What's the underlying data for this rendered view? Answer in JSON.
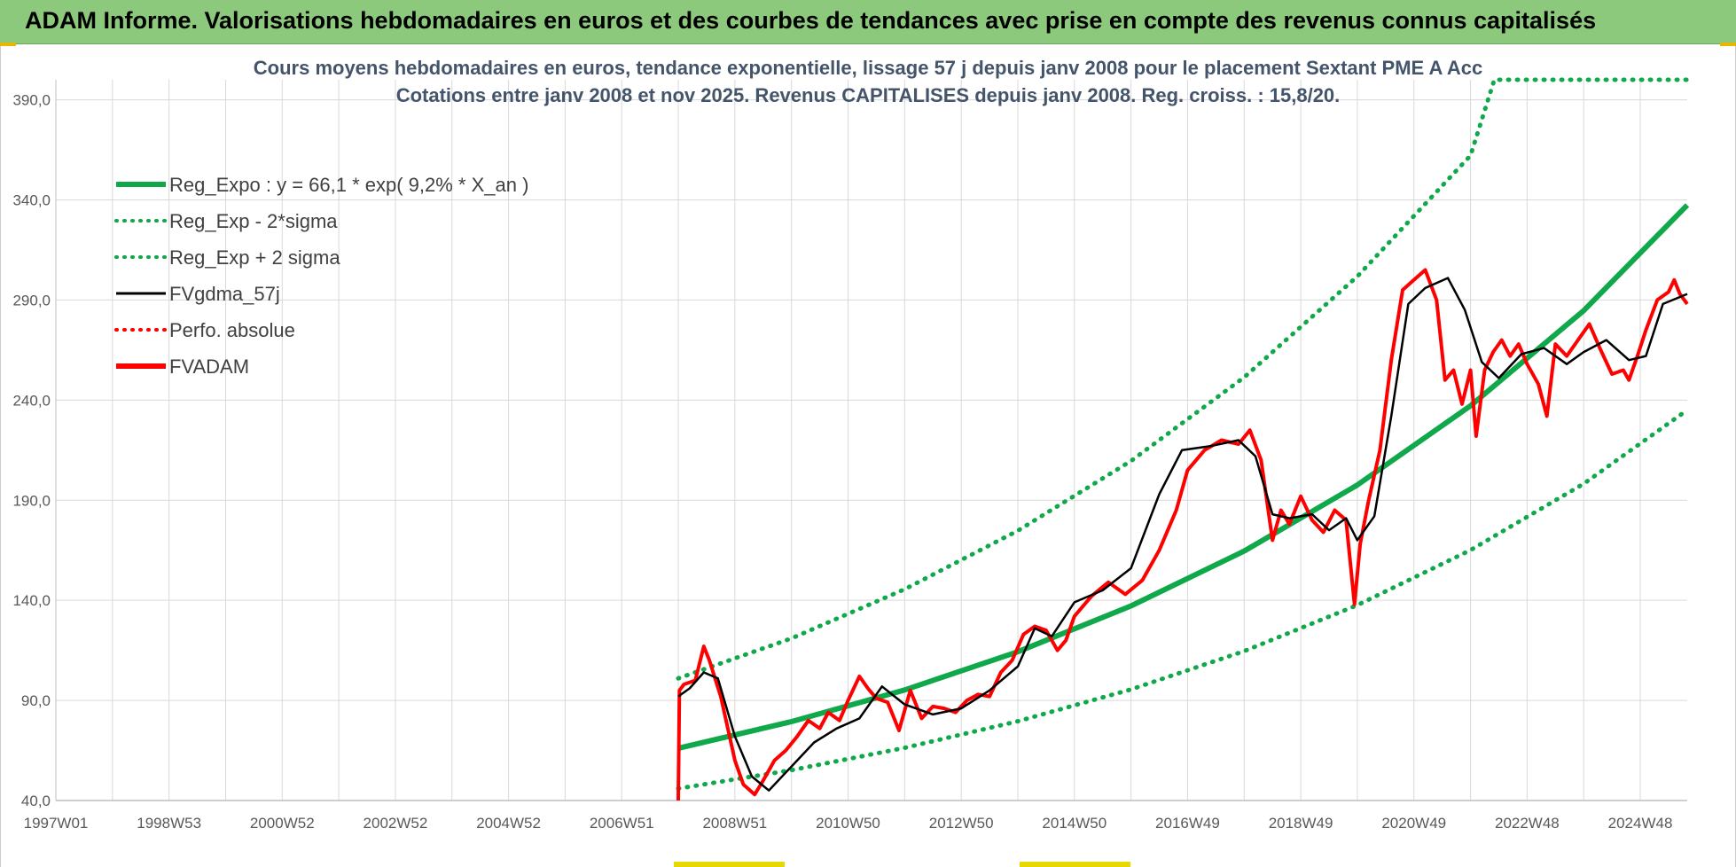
{
  "header": {
    "title": "ADAM Informe. Valorisations hebdomadaires en euros et des courbes de tendances avec prise en compte des revenus connus capitalisés"
  },
  "colors": {
    "banner": "#8cc97c",
    "trend": "#0fa84a",
    "smooth": "#000000",
    "price": "#ff0000",
    "grid": "#d9d9d9"
  },
  "chart_data": {
    "type": "line",
    "title": "Cours moyens hebdomadaires en euros, tendance exponentielle, lissage 57 j depuis janv 2008 pour le placement Sextant PME A Acc",
    "subtitle": "Cotations entre janv 2008 et nov 2025. Revenus CAPITALISES depuis janv 2008. Reg. croiss. : 15,8/20.",
    "ylim": [
      40,
      400
    ],
    "y_ticks": [
      "40,0",
      "90,0",
      "140,0",
      "190,0",
      "240,0",
      "290,0",
      "340,0",
      "390,0"
    ],
    "y_tick_values": [
      40,
      90,
      140,
      190,
      240,
      290,
      340,
      390
    ],
    "x_ticks": [
      "1997W01",
      "1998W53",
      "2000W52",
      "2002W52",
      "2004W52",
      "2006W51",
      "2008W51",
      "2010W50",
      "2012W50",
      "2014W50",
      "2016W49",
      "2018W49",
      "2020W49",
      "2022W48",
      "2024W48"
    ],
    "x_tick_years": [
      1997.0,
      1999.0,
      2001.0,
      2003.0,
      2005.0,
      2007.0,
      2009.0,
      2011.0,
      2013.0,
      2015.0,
      2017.0,
      2019.0,
      2021.0,
      2023.0,
      2025.0
    ],
    "xlim": [
      1997.0,
      2025.83
    ],
    "grid": true,
    "legend_position": "top-left",
    "legend": [
      {
        "label": "Reg_Expo : y = 66,1 * exp( 9,2% *  X_an )",
        "color": "#0fa84a",
        "style": "solid-thick"
      },
      {
        "label": "Reg_Exp - 2*sigma",
        "color": "#0fa84a",
        "style": "dotted"
      },
      {
        "label": "Reg_Exp + 2 sigma",
        "color": "#0fa84a",
        "style": "dotted"
      },
      {
        "label": "FVgdma_57j",
        "color": "#000000",
        "style": "solid"
      },
      {
        "label": "Perfo. absolue",
        "color": "#ff0000",
        "style": "dotted"
      },
      {
        "label": "FVADAM",
        "color": "#ff0000",
        "style": "solid-thick"
      }
    ],
    "series": [
      {
        "name": "Reg_Expo : y = 66,1 * exp( 9,2% *  X_an )",
        "x": [
          2008.0,
          2010.0,
          2012.0,
          2014.0,
          2016.0,
          2018.0,
          2020.0,
          2022.0,
          2024.0,
          2025.83
        ],
        "values": [
          66.1,
          79.4,
          95.2,
          114.3,
          137.2,
          164.6,
          197.6,
          237.2,
          284.7,
          337.4
        ]
      },
      {
        "name": "Reg_Exp - 2*sigma",
        "x": [
          2008.0,
          2010.0,
          2012.0,
          2014.0,
          2016.0,
          2018.0,
          2020.0,
          2022.0,
          2024.0,
          2025.83
        ],
        "values": [
          46.0,
          55.2,
          66.3,
          79.6,
          95.5,
          114.6,
          137.6,
          165.1,
          198.2,
          235.0
        ]
      },
      {
        "name": "Reg_Exp + 2 sigma",
        "x": [
          2008.0,
          2010.0,
          2012.0,
          2014.0,
          2016.0,
          2018.0,
          2020.0,
          2022.0,
          2022.42,
          2025.83
        ],
        "values": [
          101.0,
          121.0,
          145.5,
          174.8,
          209.6,
          251.4,
          301.8,
          362.2,
          400.0,
          400.0
        ]
      },
      {
        "name": "FVgdma_57j",
        "x": [
          2008.0,
          2008.2,
          2008.45,
          2008.7,
          2009.0,
          2009.3,
          2009.6,
          2010.0,
          2010.4,
          2010.8,
          2011.2,
          2011.6,
          2012.0,
          2012.5,
          2013.0,
          2013.5,
          2014.0,
          2014.3,
          2014.6,
          2015.0,
          2015.5,
          2016.0,
          2016.5,
          2016.9,
          2017.4,
          2017.9,
          2018.2,
          2018.5,
          2018.8,
          2019.2,
          2019.5,
          2019.8,
          2020.0,
          2020.3,
          2020.6,
          2020.9,
          2021.2,
          2021.6,
          2021.9,
          2022.2,
          2022.5,
          2022.9,
          2023.3,
          2023.7,
          2024.0,
          2024.4,
          2024.8,
          2025.1,
          2025.4,
          2025.83
        ],
        "values": [
          92.0,
          96.0,
          104.0,
          101.0,
          72.0,
          52.0,
          45.0,
          57.0,
          69.0,
          76.0,
          81.0,
          97.0,
          88.0,
          83.0,
          86.0,
          95.0,
          107.0,
          126.0,
          122.0,
          139.0,
          145.0,
          156.0,
          193.0,
          215.0,
          217.0,
          220.0,
          212.0,
          183.0,
          181.0,
          183.0,
          175.0,
          181.0,
          170.0,
          182.0,
          232.0,
          288.0,
          296.0,
          301.0,
          285.0,
          259.0,
          251.0,
          263.0,
          266.0,
          258.0,
          264.0,
          270.0,
          260.0,
          262.0,
          288.0,
          293.0
        ]
      },
      {
        "name": "FVADAM",
        "x": [
          2008.0,
          2008.02,
          2008.1,
          2008.3,
          2008.45,
          2008.55,
          2008.75,
          2009.0,
          2009.15,
          2009.35,
          2009.5,
          2009.7,
          2009.9,
          2010.1,
          2010.3,
          2010.5,
          2010.65,
          2010.85,
          2011.0,
          2011.2,
          2011.35,
          2011.5,
          2011.7,
          2011.9,
          2012.1,
          2012.3,
          2012.5,
          2012.7,
          2012.9,
          2013.1,
          2013.3,
          2013.5,
          2013.7,
          2013.9,
          2014.1,
          2014.3,
          2014.5,
          2014.7,
          2014.85,
          2015.0,
          2015.3,
          2015.6,
          2015.9,
          2016.2,
          2016.5,
          2016.8,
          2017.0,
          2017.3,
          2017.6,
          2017.9,
          2018.1,
          2018.3,
          2018.5,
          2018.65,
          2018.8,
          2019.0,
          2019.2,
          2019.4,
          2019.6,
          2019.8,
          2019.95,
          2020.05,
          2020.2,
          2020.4,
          2020.6,
          2020.8,
          2021.0,
          2021.2,
          2021.4,
          2021.55,
          2021.7,
          2021.85,
          2022.0,
          2022.1,
          2022.25,
          2022.4,
          2022.55,
          2022.7,
          2022.85,
          2023.0,
          2023.2,
          2023.35,
          2023.5,
          2023.7,
          2023.9,
          2024.1,
          2024.3,
          2024.5,
          2024.7,
          2024.8,
          2024.95,
          2025.1,
          2025.3,
          2025.5,
          2025.6,
          2025.7,
          2025.83
        ],
        "values": [
          40.0,
          95.0,
          98.0,
          100.0,
          117.0,
          110.0,
          92.0,
          60.0,
          48.0,
          43.0,
          50.0,
          60.0,
          65.0,
          72.0,
          80.0,
          76.0,
          84.0,
          80.0,
          90.0,
          102.0,
          96.0,
          91.0,
          89.0,
          75.0,
          95.0,
          81.0,
          87.0,
          86.0,
          84.0,
          90.0,
          93.0,
          92.0,
          104.0,
          110.0,
          123.0,
          127.0,
          125.0,
          115.0,
          120.0,
          132.0,
          142.0,
          149.0,
          143.0,
          150.0,
          165.0,
          185.0,
          205.0,
          215.0,
          220.0,
          218.0,
          225.0,
          210.0,
          170.0,
          185.0,
          178.0,
          192.0,
          180.0,
          174.0,
          185.0,
          180.0,
          138.0,
          168.0,
          190.0,
          215.0,
          260.0,
          295.0,
          300.0,
          305.0,
          290.0,
          250.0,
          255.0,
          238.0,
          255.0,
          222.0,
          255.0,
          264.0,
          270.0,
          262.0,
          268.0,
          258.0,
          248.0,
          232.0,
          268.0,
          262.0,
          270.0,
          278.0,
          265.0,
          253.0,
          255.0,
          250.0,
          262.0,
          275.0,
          290.0,
          294.0,
          300.0,
          293.0,
          288.0
        ]
      }
    ]
  }
}
